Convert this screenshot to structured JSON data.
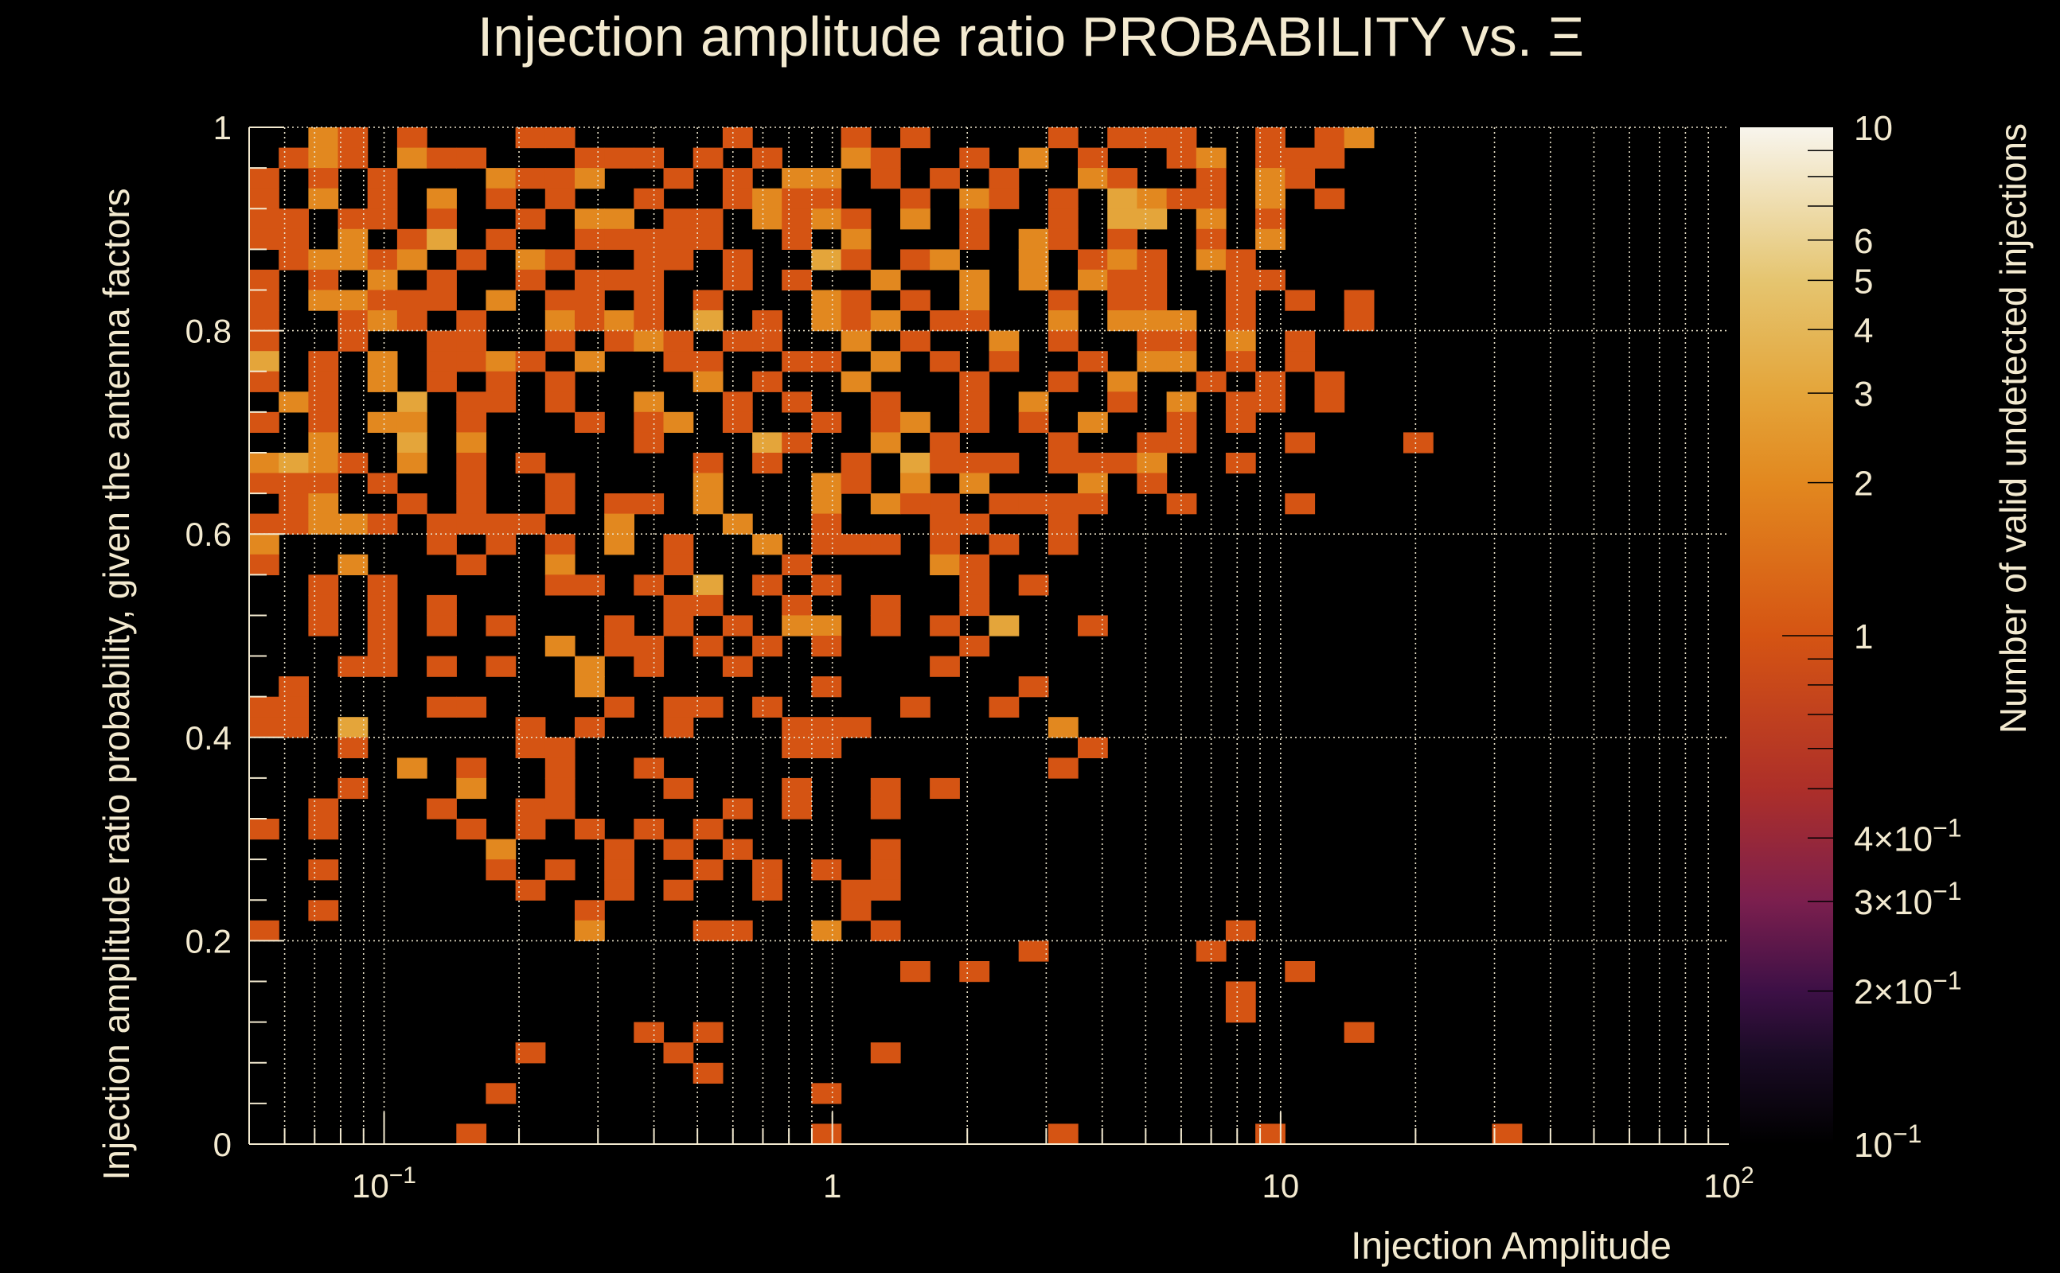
{
  "chart_data": {
    "type": "heatmap",
    "title": "Injection amplitude ratio PROBABILITY vs.  Ξ",
    "xlabel": "Injection Amplitude",
    "ylabel": "Injection amplitude ratio probability, given the antenna factors",
    "zlabel": "Number of valid undetected injections",
    "x_scale": "log",
    "xlim": [
      0.05,
      100
    ],
    "ylim": [
      0,
      1
    ],
    "z_scale": "log",
    "zlim": [
      0.1,
      10
    ],
    "x_bins": 50,
    "y_bins": 50,
    "grid": true,
    "x_ticks": [
      {
        "value": 0.1,
        "base": "10",
        "exp": "−1"
      },
      {
        "value": 1,
        "base": "1",
        "exp": ""
      },
      {
        "value": 10,
        "base": "10",
        "exp": ""
      },
      {
        "value": 100,
        "base": "10",
        "exp": "2"
      }
    ],
    "y_ticks": [
      {
        "value": 0,
        "label": "0"
      },
      {
        "value": 0.2,
        "label": "0.2"
      },
      {
        "value": 0.4,
        "label": "0.4"
      },
      {
        "value": 0.6,
        "label": "0.6"
      },
      {
        "value": 0.8,
        "label": "0.8"
      },
      {
        "value": 1,
        "label": "1"
      }
    ],
    "z_ticks": [
      {
        "value": 10,
        "base": "10",
        "exp": ""
      },
      {
        "value": 6,
        "base": "6",
        "exp": ""
      },
      {
        "value": 5,
        "base": "5",
        "exp": ""
      },
      {
        "value": 4,
        "base": "4",
        "exp": ""
      },
      {
        "value": 3,
        "base": "3",
        "exp": ""
      },
      {
        "value": 2,
        "base": "2",
        "exp": ""
      },
      {
        "value": 1,
        "base": "1",
        "exp": ""
      },
      {
        "value": 0.4,
        "base": "4×10",
        "exp": "−1"
      },
      {
        "value": 0.3,
        "base": "3×10",
        "exp": "−1"
      },
      {
        "value": 0.2,
        "base": "2×10",
        "exp": "−1"
      },
      {
        "value": 0.1,
        "base": "10",
        "exp": "−1"
      }
    ],
    "colormap_stops": [
      [
        0.1,
        "#000000"
      ],
      [
        0.15,
        "#1a0b25"
      ],
      [
        0.2,
        "#3d1046"
      ],
      [
        0.3,
        "#7b1f4e"
      ],
      [
        0.5,
        "#ad2f29"
      ],
      [
        1,
        "#d55413"
      ],
      [
        2,
        "#e2881f"
      ],
      [
        3,
        "#e4a53a"
      ],
      [
        5,
        "#e5c570"
      ],
      [
        10,
        "#f8f5ed"
      ]
    ],
    "counts_rows_top_to_bottom": [
      "..21.1...11.....1...1.1....1.111..1.12",
      ".121.211...111.1.1..21..1.2.1..12.111",
      "1.1.1...2112..1.1.22.1.1.1..21..1.21",
      "1.2.1.2.1.1..1..1211..1.21.1.3211.2.1",
      "11.11.1..1.22.11.2121.2.1..1.33.2.1",
      "11.2.13.1..11111..1.2...1.21.1..1.2",
      ".12212.1.21..11.1..31.12..2.121.21",
      "1.1.2.1..1.111..1.1..2..2.2.211..11",
      "1.22111.2.11.1.1...21.1.2..1.11..1.1.1",
      "1..121.1..2121.3.1.212.11..2.222.1...1",
      "1..1..11..1.121.11..2.1..2.1..11.2.1",
      "3.1.2.1121.2..11..11.2.1.1..1.22.1.1",
      "1.1.2.1.1.1....2.1..2...1..1.2..1.1.1",
      ".21..3.11.1..2..1.1..1..1.2..1.2.11.1",
      "1.1.22.1...1.12.1..1.12.1.1.2..1.1",
      "..2..3.2.....1...31..2.1...1..11...1...1",
      "2321.2.1.1.....1.1..1.3111.1112..1",
      "111.1..1..1....2...21.2.2...2.1",
      ".12..1.1..1.11.2...2.211.1111..1...1",
      "11221.1111..2...2..1...11..1",
      "2.....1.1.1.2.1..2.111.1.1.1",
      "1..2...1..2...1...1....21",
      "..1.1.....11.1.3.1.1....1.1",
      "..1.1.1.......11..1..1..1",
      "..1.1.1.1...1.1.1.22.1.1.3..1",
      "....1.....2.11.1.1.1....1",
      "...11.1.1..2.1..1......1",
      ".1.........2.......1......1",
      "11....11....1.11.1....1..1",
      "11.3.....1.1..1...111......2",
      "...1.....11.......11........1",
      ".....2.1..1..1.............1",
      "...1...2..1...1...1..1.1",
      "..1...1..11.....1.1..1",
      "1.1....1.1.1.1.1",
      "........2...1.1.1....1",
      "..1.....1.1.1..1.1.1.1",
      ".........1..1.1..1..11",
      "..1........1........1",
      "1..........2...11..2.1...........1",
      "..........................1.....1",
      "......................1.1..........1",
      ".................................1",
      ".................................1",
      ".............1.1.....................1",
      ".........1....1......1",
      "...............1",
      "........1..........1",
      "",
      ".......1...........1.......1......1.......1"
    ]
  }
}
